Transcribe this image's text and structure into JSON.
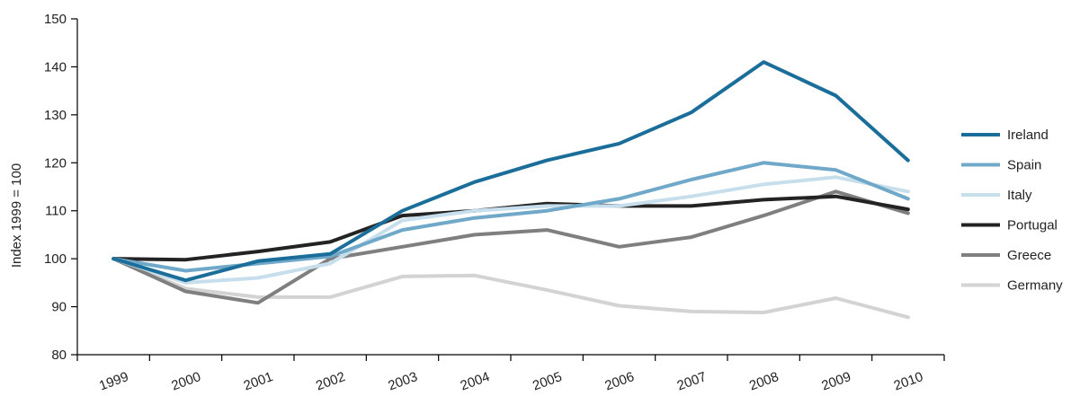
{
  "chart_data": {
    "type": "line",
    "title": "",
    "xlabel": "",
    "ylabel": "Index 1999 = 100",
    "x": [
      "1999",
      "2000",
      "2001",
      "2002",
      "2003",
      "2004",
      "2005",
      "2006",
      "2007",
      "2008",
      "2009",
      "2010"
    ],
    "ylim": [
      80,
      150
    ],
    "yticks": [
      80,
      90,
      100,
      110,
      120,
      130,
      140,
      150
    ],
    "legend_position": "right",
    "grid": false,
    "series": [
      {
        "name": "Ireland",
        "color": "#1B6E9A",
        "values": [
          100,
          95.5,
          99.5,
          101,
          110,
          116,
          120.5,
          124,
          130.5,
          141,
          134,
          120.5
        ]
      },
      {
        "name": "Spain",
        "color": "#6FA8C8",
        "values": [
          100,
          97.5,
          99,
          100.5,
          106,
          108.5,
          110,
          112.5,
          116.5,
          120,
          118.5,
          112.5
        ]
      },
      {
        "name": "Italy",
        "color": "#C7DFEC",
        "values": [
          100,
          95,
          96,
          99,
          108,
          110,
          111,
          111,
          113,
          115.5,
          117,
          114
        ]
      },
      {
        "name": "Portugal",
        "color": "#232323",
        "values": [
          100,
          99.8,
          101.5,
          103.5,
          109,
          110,
          111.5,
          111,
          111,
          112.3,
          113,
          110.3
        ]
      },
      {
        "name": "Greece",
        "color": "#7F7F7F",
        "values": [
          100,
          93.2,
          90.8,
          100,
          102.5,
          105,
          106,
          102.5,
          104.5,
          109,
          114,
          109.5
        ]
      },
      {
        "name": "Germany",
        "color": "#D3D3D3",
        "values": [
          100,
          93.8,
          92,
          92,
          96.3,
          96.5,
          93.5,
          90.2,
          89,
          88.8,
          91.8,
          87.8
        ]
      }
    ]
  }
}
